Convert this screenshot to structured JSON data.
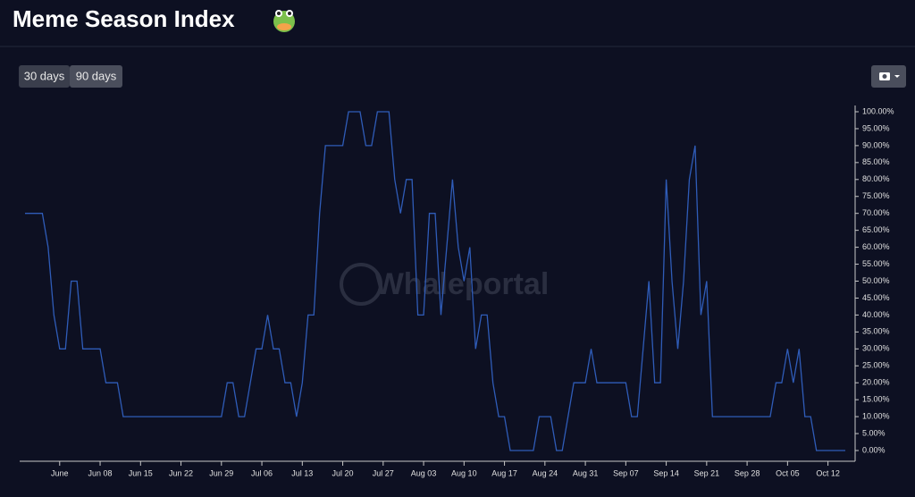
{
  "header": {
    "title": "Meme Season Index"
  },
  "controls": [
    "30 days",
    "90 days"
  ],
  "chart_data": {
    "type": "line",
    "watermark": "Whaleportal",
    "categories": [
      null,
      null,
      null,
      null,
      null,
      null,
      "June",
      null,
      null,
      null,
      null,
      null,
      null,
      "Jun 08",
      null,
      null,
      null,
      null,
      null,
      null,
      "Jun 15",
      null,
      null,
      null,
      null,
      null,
      null,
      "Jun 22",
      null,
      null,
      null,
      null,
      null,
      null,
      "Jun 29",
      null,
      null,
      null,
      null,
      null,
      null,
      "Jul 06",
      null,
      null,
      null,
      null,
      null,
      null,
      "Jul 13",
      null,
      null,
      null,
      null,
      null,
      null,
      "Jul 20",
      null,
      null,
      null,
      null,
      null,
      null,
      "Jul 27",
      null,
      null,
      null,
      null,
      null,
      null,
      "Aug 03",
      null,
      null,
      null,
      null,
      null,
      null,
      "Aug 10",
      null,
      null,
      null,
      null,
      null,
      null,
      "Aug 17",
      null,
      null,
      null,
      null,
      null,
      null,
      "Aug 24",
      null,
      null,
      null,
      null,
      null,
      null,
      "Aug 31",
      null,
      null,
      null,
      null,
      null,
      null,
      "Sep 07",
      null,
      null,
      null,
      null,
      null,
      null,
      "Sep 14",
      null,
      null,
      null,
      null,
      null,
      null,
      "Sep 21",
      null,
      null,
      null,
      null,
      null,
      null,
      "Sep 28",
      null,
      null,
      null,
      null,
      null,
      null,
      "Oct 05",
      null,
      null,
      null,
      null,
      null,
      null,
      "Oct 12",
      null,
      null,
      null
    ],
    "values": [
      70,
      70,
      70,
      70,
      60,
      40,
      30,
      30,
      50,
      50,
      30,
      30,
      30,
      30,
      20,
      20,
      20,
      10,
      10,
      10,
      10,
      10,
      10,
      10,
      10,
      10,
      10,
      10,
      10,
      10,
      10,
      10,
      10,
      10,
      10,
      20,
      20,
      10,
      10,
      20,
      30,
      30,
      40,
      30,
      30,
      20,
      20,
      10,
      20,
      40,
      40,
      70,
      90,
      90,
      90,
      90,
      100,
      100,
      100,
      90,
      90,
      100,
      100,
      100,
      80,
      70,
      80,
      80,
      40,
      40,
      70,
      70,
      40,
      60,
      80,
      60,
      50,
      60,
      30,
      40,
      40,
      20,
      10,
      10,
      0,
      0,
      0,
      0,
      0,
      10,
      10,
      10,
      0,
      0,
      10,
      20,
      20,
      20,
      30,
      20,
      20,
      20,
      20,
      20,
      20,
      10,
      10,
      30,
      50,
      20,
      20,
      80,
      50,
      30,
      50,
      80,
      90,
      40,
      50,
      10,
      10,
      10,
      10,
      10,
      10,
      10,
      10,
      10,
      10,
      10,
      20,
      20,
      30,
      20,
      30,
      10,
      10,
      0,
      0,
      0,
      0,
      0,
      0
    ],
    "color": "#2f5cb8",
    "ylim": [
      0,
      100
    ],
    "yticks": [
      {
        "value": 0,
        "label": "0.00%"
      },
      {
        "value": 5,
        "label": "5.00%"
      },
      {
        "value": 10,
        "label": "10.00%"
      },
      {
        "value": 15,
        "label": "15.00%"
      },
      {
        "value": 20,
        "label": "20.00%"
      },
      {
        "value": 25,
        "label": "25.00%"
      },
      {
        "value": 30,
        "label": "30.00%"
      },
      {
        "value": 35,
        "label": "35.00%"
      },
      {
        "value": 40,
        "label": "40.00%"
      },
      {
        "value": 45,
        "label": "45.00%"
      },
      {
        "value": 50,
        "label": "50.00%"
      },
      {
        "value": 55,
        "label": "55.00%"
      },
      {
        "value": 60,
        "label": "60.00%"
      },
      {
        "value": 65,
        "label": "65.00%"
      },
      {
        "value": 70,
        "label": "70.00%"
      },
      {
        "value": 75,
        "label": "75.00%"
      },
      {
        "value": 80,
        "label": "80.00%"
      },
      {
        "value": 85,
        "label": "85.00%"
      },
      {
        "value": 90,
        "label": "90.00%"
      },
      {
        "value": 95,
        "label": "95.00%"
      },
      {
        "value": 100,
        "label": "100.00%"
      }
    ]
  }
}
